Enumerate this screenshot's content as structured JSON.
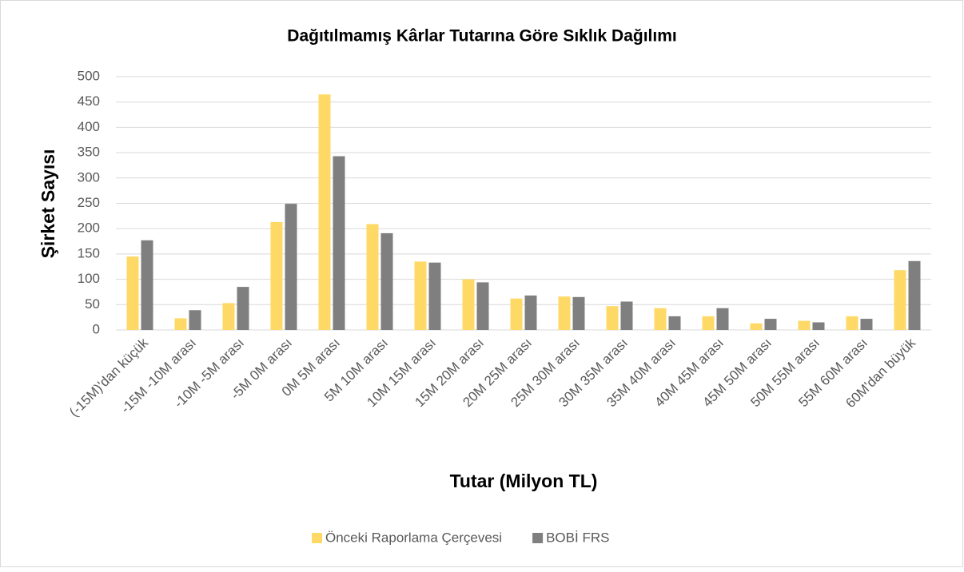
{
  "chart_data": {
    "type": "bar",
    "title": "Dağıtılmamış Kârlar Tutarına Göre Sıklık Dağılımı",
    "x_label": "Tutar (Milyon TL)",
    "y_label": "Şirket Sayısı",
    "categories": [
      "(-15M)'dan küçük",
      "-15M -10M arası",
      "-10M -5M arası",
      "-5M 0M arası",
      "0M 5M arası",
      "5M 10M arası",
      "10M 15M arası",
      "15M 20M arası",
      "20M 25M arası",
      "25M 30M arası",
      "30M 35M arası",
      "35M 40M arası",
      "40M 45M arası",
      "45M 50M arası",
      "50M 55M arası",
      "55M 60M arası",
      "60M'dan büyük"
    ],
    "series": [
      {
        "name": "Önceki Raporlama Çerçevesi",
        "color": "#ffd966",
        "values": [
          145,
          23,
          53,
          213,
          465,
          209,
          135,
          100,
          62,
          66,
          47,
          43,
          27,
          13,
          18,
          27,
          118
        ]
      },
      {
        "name": "BOBİ FRS",
        "color": "#7f7f7f",
        "values": [
          177,
          39,
          85,
          249,
          343,
          191,
          133,
          94,
          68,
          65,
          56,
          27,
          43,
          22,
          15,
          22,
          136
        ]
      }
    ],
    "ylim": [
      0,
      500
    ],
    "yticks": [
      0,
      50,
      100,
      150,
      200,
      250,
      300,
      350,
      400,
      450,
      500
    ],
    "grid": true,
    "legend": "bottom"
  }
}
